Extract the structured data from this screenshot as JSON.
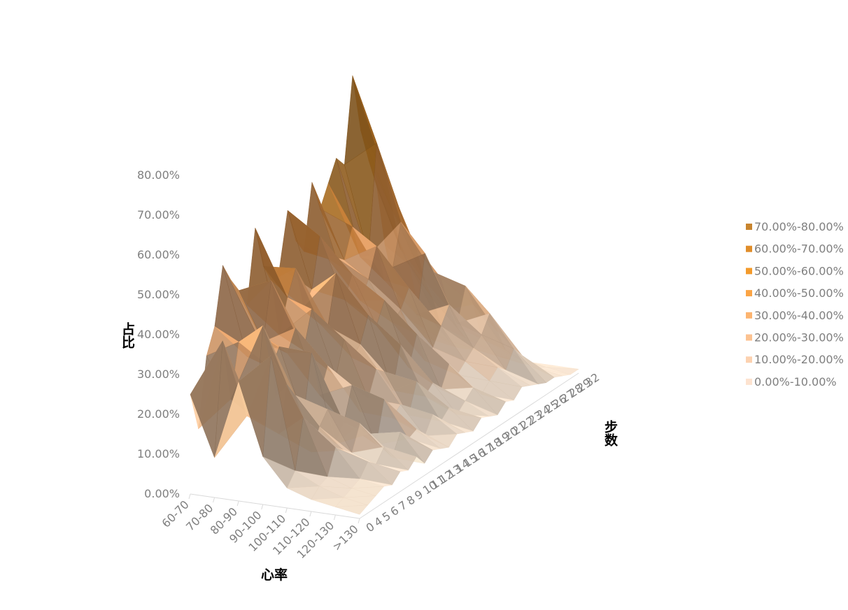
{
  "chart_data": {
    "type": "surface",
    "xlabel": "心率",
    "ylabel": "步数",
    "zlabel": "占比",
    "zlim": [
      0,
      0.8
    ],
    "z_ticks": [
      "0.00%",
      "10.00%",
      "20.00%",
      "30.00%",
      "40.00%",
      "50.00%",
      "60.00%",
      "70.00%",
      "80.00%"
    ],
    "heart_rate_categories": [
      "60-70",
      "70-80",
      "80-90",
      "90-100",
      "100-110",
      "110-120",
      "120-130",
      ">130"
    ],
    "steps_categories": [
      "0",
      "4",
      "5",
      "6",
      "7",
      "8",
      "9",
      "10",
      "11",
      "12",
      "13",
      "14",
      "15",
      "16",
      "17",
      "18",
      "19",
      "20",
      "21",
      "22",
      "23",
      "24",
      "25",
      "26",
      "27",
      "28",
      "29",
      "32"
    ],
    "legend": {
      "position": "right",
      "entries": [
        {
          "label": "70.00%-80.00%",
          "color": "#c8842e"
        },
        {
          "label": "60.00%-70.00%",
          "color": "#e08d2a"
        },
        {
          "label": "50.00%-60.00%",
          "color": "#f39a2b"
        },
        {
          "label": "40.00%-50.00%",
          "color": "#fba445"
        },
        {
          "label": "30.00%-40.00%",
          "color": "#fcb470"
        },
        {
          "label": "20.00%-30.00%",
          "color": "#fcc290"
        },
        {
          "label": "10.00%-20.00%",
          "color": "#fcd2b0"
        },
        {
          "label": "0.00%-10.00%",
          "color": "#fde3d0"
        }
      ]
    },
    "band_colors": [
      "#fde8d2",
      "#fdd8b8",
      "#fcc89a",
      "#fbb377",
      "#faa14c",
      "#f39a2b",
      "#e08d2a",
      "#c8842e"
    ],
    "z": [
      [
        0.25,
        0.15,
        0.32,
        0.38,
        0.52,
        0.47,
        0.43,
        0.38,
        0.56,
        0.45,
        0.4,
        0.42,
        0.55,
        0.46,
        0.42,
        0.58,
        0.5,
        0.55,
        0.6,
        0.57,
        0.78,
        0.63,
        0.54,
        0.46,
        0.3,
        0.2,
        0.1,
        0.04
      ],
      [
        0.1,
        0.38,
        0.22,
        0.35,
        0.3,
        0.35,
        0.31,
        0.45,
        0.3,
        0.38,
        0.44,
        0.33,
        0.36,
        0.48,
        0.41,
        0.4,
        0.38,
        0.45,
        0.36,
        0.35,
        0.62,
        0.53,
        0.42,
        0.31,
        0.26,
        0.15,
        0.07,
        0.03
      ],
      [
        0.3,
        0.2,
        0.18,
        0.4,
        0.28,
        0.32,
        0.29,
        0.34,
        0.27,
        0.36,
        0.31,
        0.29,
        0.41,
        0.33,
        0.38,
        0.3,
        0.34,
        0.41,
        0.31,
        0.33,
        0.43,
        0.38,
        0.33,
        0.24,
        0.18,
        0.1,
        0.05,
        0.02
      ],
      [
        0.12,
        0.36,
        0.15,
        0.26,
        0.22,
        0.15,
        0.3,
        0.18,
        0.24,
        0.2,
        0.28,
        0.22,
        0.24,
        0.3,
        0.26,
        0.31,
        0.24,
        0.26,
        0.3,
        0.22,
        0.36,
        0.3,
        0.27,
        0.18,
        0.12,
        0.08,
        0.04,
        0.02
      ],
      [
        0.05,
        0.08,
        0.2,
        0.1,
        0.15,
        0.18,
        0.08,
        0.12,
        0.2,
        0.12,
        0.14,
        0.2,
        0.18,
        0.12,
        0.22,
        0.15,
        0.22,
        0.14,
        0.16,
        0.2,
        0.24,
        0.18,
        0.26,
        0.2,
        0.1,
        0.06,
        0.03,
        0.01
      ],
      [
        0.03,
        0.05,
        0.06,
        0.12,
        0.1,
        0.08,
        0.14,
        0.1,
        0.06,
        0.16,
        0.1,
        0.12,
        0.08,
        0.15,
        0.1,
        0.12,
        0.09,
        0.14,
        0.1,
        0.12,
        0.14,
        0.16,
        0.2,
        0.14,
        0.08,
        0.05,
        0.02,
        0.01
      ],
      [
        0.02,
        0.03,
        0.04,
        0.05,
        0.08,
        0.06,
        0.09,
        0.05,
        0.1,
        0.07,
        0.08,
        0.05,
        0.09,
        0.06,
        0.08,
        0.05,
        0.07,
        0.09,
        0.06,
        0.08,
        0.1,
        0.08,
        0.12,
        0.09,
        0.05,
        0.03,
        0.02,
        0.01
      ],
      [
        0.01,
        0.02,
        0.03,
        0.04,
        0.03,
        0.05,
        0.04,
        0.06,
        0.03,
        0.05,
        0.04,
        0.03,
        0.05,
        0.04,
        0.03,
        0.05,
        0.04,
        0.03,
        0.05,
        0.04,
        0.06,
        0.05,
        0.04,
        0.03,
        0.03,
        0.02,
        0.01,
        0.01
      ]
    ]
  }
}
